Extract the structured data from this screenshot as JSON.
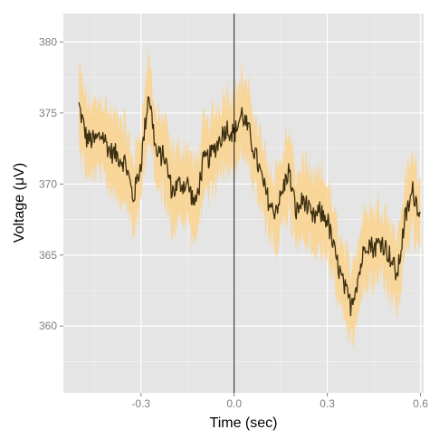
{
  "chart_data": {
    "type": "line",
    "title": "",
    "xlabel": "Time (sec)",
    "ylabel": "Voltage (μV)",
    "xlim": [
      -0.55,
      0.61
    ],
    "ylim": [
      355.3,
      382.0
    ],
    "x_ticks": [
      -0.3,
      0.0,
      0.3,
      0.6
    ],
    "x_tick_labels": [
      "-0.3",
      "0.0",
      "0.3",
      "0.6"
    ],
    "y_ticks": [
      360,
      365,
      370,
      375,
      380
    ],
    "y_tick_labels": [
      "360",
      "365",
      "370",
      "375",
      "380"
    ],
    "grid": true,
    "legend": "none",
    "vline_x": 0.0,
    "series": [
      {
        "x": [
          -0.5,
          -0.475,
          -0.45,
          -0.425,
          -0.4,
          -0.375,
          -0.35,
          -0.325,
          -0.3,
          -0.275,
          -0.25,
          -0.225,
          -0.2,
          -0.175,
          -0.15,
          -0.125,
          -0.1,
          -0.075,
          -0.05,
          -0.025,
          0.0,
          0.025,
          0.05,
          0.075,
          0.1,
          0.125,
          0.15,
          0.175,
          0.2,
          0.225,
          0.25,
          0.275,
          0.3,
          0.325,
          0.35,
          0.375,
          0.4,
          0.425,
          0.45,
          0.475,
          0.5,
          0.525,
          0.55,
          0.575,
          0.6
        ],
        "values": [
          375.5,
          373.2,
          373.0,
          373.5,
          372.3,
          372.0,
          371.5,
          369.0,
          371.5,
          376.5,
          372.0,
          372.0,
          369.5,
          370.0,
          370.0,
          368.5,
          371.5,
          372.0,
          373.0,
          374.0,
          373.5,
          375.0,
          373.5,
          371.5,
          369.5,
          368.0,
          369.0,
          371.0,
          368.0,
          369.0,
          367.5,
          368.0,
          367.5,
          365.0,
          363.0,
          361.5,
          363.5,
          366.0,
          365.5,
          366.0,
          365.0,
          363.5,
          367.5,
          369.5,
          368.0
        ],
        "ci_width": 2.5,
        "line_color": "#3d2f10",
        "ribbon_color": "#fbd28c"
      }
    ]
  },
  "colors": {
    "panel_background": "#e5e5e5",
    "gridline": "#ffffff"
  }
}
